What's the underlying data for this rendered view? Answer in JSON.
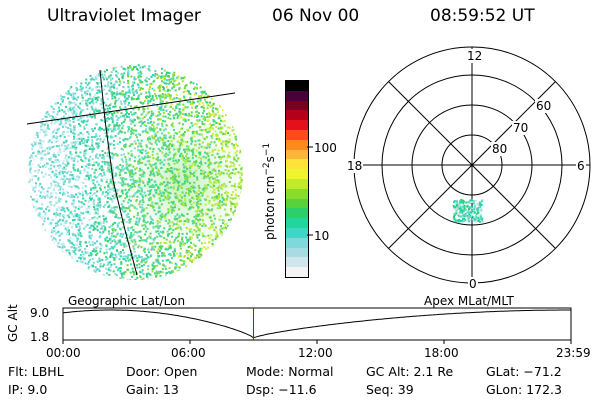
{
  "header": {
    "instrument": "Ultraviolet Imager",
    "date": "06 Nov 00",
    "time": "08:59:52 UT"
  },
  "colorbar": {
    "label_main": "photon cm",
    "label_sup1": "−2",
    "label_mid": "s",
    "label_sup2": "−1",
    "ticks": [
      "100",
      "10"
    ],
    "scale": "log",
    "colors": [
      "#f4f4f4",
      "#cfe6ec",
      "#a9dbe3",
      "#7fd8dc",
      "#3fd6c6",
      "#21d69c",
      "#2cd06b",
      "#58d23a",
      "#8bdc2a",
      "#c0ea2a",
      "#eef52e",
      "#ffe23a",
      "#ffb43a",
      "#ff8a1c",
      "#ff4a1a",
      "#e4101a",
      "#b40018",
      "#7a0020",
      "#4a003a",
      "#000000"
    ]
  },
  "polar": {
    "mlt_labels": {
      "top": "12",
      "left": "18",
      "right": "6",
      "bottom": "0"
    },
    "lat_labels": [
      "60",
      "70",
      "80"
    ]
  },
  "mode_labels": {
    "left": "Geographic Lat/Lon",
    "right": "Apex MLat/MLT"
  },
  "timeline": {
    "ylabel": "GC Alt",
    "y_top": "9.0",
    "y_bottom": "1.8",
    "x_ticks": [
      "00:00",
      "06:00",
      "12:00",
      "18:00",
      "23:59"
    ],
    "marker_time": "08:59:52"
  },
  "info": {
    "flt": "Flt:  LBHL",
    "ip": "IP:  9.0",
    "door": "Door:  Open",
    "gain": "Gain:  13",
    "mode": "Mode:  Normal",
    "dsp": "Dsp:    −11.6",
    "gcalt": "GC Alt:  2.1 Re",
    "seq": "Seq:  39",
    "glat": "GLat:  −71.2",
    "glon": "GLon:  172.3"
  }
}
